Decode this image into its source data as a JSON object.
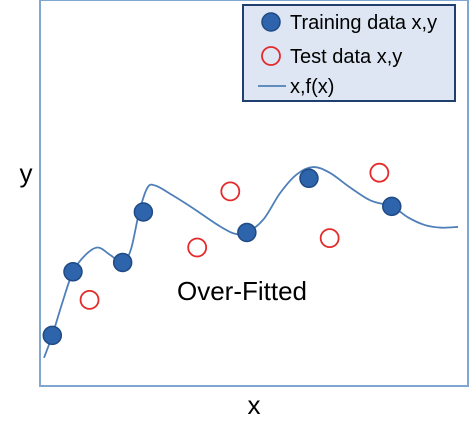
{
  "chart_data": {
    "type": "scatter",
    "xlabel": "x",
    "ylabel": "y",
    "annotation": "Over-Fitted",
    "grid": false,
    "legend_position": "top-right",
    "xlim": [
      0,
      1
    ],
    "ylim": [
      0,
      1
    ],
    "colors": {
      "training_fill": "#2E64AC",
      "training_stroke": "#1F4A85",
      "test_stroke": "#E32B2B",
      "curve": "#4F7FB8",
      "axis_frame": "#7FA7CF",
      "legend_bg": "#DDE6F2",
      "legend_border": "#1F3F6F"
    },
    "series": [
      {
        "name": "Training data x,y",
        "kind": "filled-circle",
        "points": [
          {
            "x": 0.02,
            "y": 0.13
          },
          {
            "x": 0.07,
            "y": 0.3
          },
          {
            "x": 0.19,
            "y": 0.325
          },
          {
            "x": 0.24,
            "y": 0.46
          },
          {
            "x": 0.49,
            "y": 0.405
          },
          {
            "x": 0.64,
            "y": 0.55
          },
          {
            "x": 0.84,
            "y": 0.475
          }
        ]
      },
      {
        "name": "Test data x,y",
        "kind": "open-circle",
        "points": [
          {
            "x": 0.11,
            "y": 0.225
          },
          {
            "x": 0.37,
            "y": 0.365
          },
          {
            "x": 0.45,
            "y": 0.515
          },
          {
            "x": 0.69,
            "y": 0.39
          },
          {
            "x": 0.81,
            "y": 0.565
          }
        ]
      },
      {
        "name": "x,f(x)",
        "kind": "line",
        "points": [
          {
            "x": 0.0,
            "y": 0.07
          },
          {
            "x": 0.02,
            "y": 0.13
          },
          {
            "x": 0.045,
            "y": 0.22
          },
          {
            "x": 0.07,
            "y": 0.3
          },
          {
            "x": 0.1,
            "y": 0.345
          },
          {
            "x": 0.13,
            "y": 0.365
          },
          {
            "x": 0.16,
            "y": 0.345
          },
          {
            "x": 0.19,
            "y": 0.325
          },
          {
            "x": 0.21,
            "y": 0.36
          },
          {
            "x": 0.23,
            "y": 0.46
          },
          {
            "x": 0.25,
            "y": 0.525
          },
          {
            "x": 0.27,
            "y": 0.53
          },
          {
            "x": 0.31,
            "y": 0.505
          },
          {
            "x": 0.36,
            "y": 0.47
          },
          {
            "x": 0.42,
            "y": 0.425
          },
          {
            "x": 0.46,
            "y": 0.402
          },
          {
            "x": 0.49,
            "y": 0.405
          },
          {
            "x": 0.53,
            "y": 0.44
          },
          {
            "x": 0.57,
            "y": 0.51
          },
          {
            "x": 0.61,
            "y": 0.56
          },
          {
            "x": 0.65,
            "y": 0.58
          },
          {
            "x": 0.69,
            "y": 0.565
          },
          {
            "x": 0.74,
            "y": 0.525
          },
          {
            "x": 0.79,
            "y": 0.49
          },
          {
            "x": 0.84,
            "y": 0.475
          },
          {
            "x": 0.88,
            "y": 0.445
          },
          {
            "x": 0.92,
            "y": 0.425
          },
          {
            "x": 0.96,
            "y": 0.418
          },
          {
            "x": 1.0,
            "y": 0.42
          }
        ]
      }
    ]
  }
}
